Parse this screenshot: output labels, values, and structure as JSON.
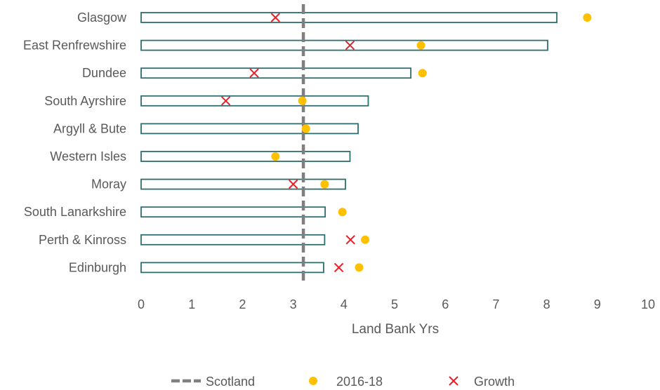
{
  "chart_data": {
    "type": "bar",
    "orientation": "horizontal",
    "title": "",
    "xlabel": "Land Bank Yrs",
    "ylabel": "",
    "xlim": [
      0,
      10
    ],
    "xticks": [
      "0",
      "1",
      "2",
      "3",
      "4",
      "5",
      "6",
      "7",
      "8",
      "9",
      "10"
    ],
    "grid": false,
    "legend_position": "bottom",
    "categories": [
      "Glasgow",
      "East Renfrewshire",
      "Dundee",
      "South Ayrshire",
      "Argyll & Bute",
      "Western Isles",
      "Moray",
      "South Lanarkshire",
      "Perth & Kinross",
      "Edinburgh"
    ],
    "bar_values": [
      8.2,
      8.02,
      5.32,
      4.48,
      4.28,
      4.12,
      4.03,
      3.63,
      3.62,
      3.6
    ],
    "series": [
      {
        "name": "Scotland",
        "kind": "reference-line",
        "value": 3.2,
        "color": "#7f7f7f"
      },
      {
        "name": "2016-18",
        "kind": "points",
        "color": "#ffc000",
        "values": [
          8.8,
          5.52,
          5.55,
          3.18,
          3.25,
          2.65,
          3.62,
          3.97,
          4.42,
          4.3
        ]
      },
      {
        "name": "Growth",
        "kind": "points",
        "color": "#e8202a",
        "values": [
          2.65,
          4.12,
          2.23,
          1.67,
          null,
          null,
          3.0,
          null,
          4.13,
          3.9
        ]
      }
    ],
    "legend": [
      {
        "name": "Scotland",
        "marker": "dashed-line"
      },
      {
        "name": "2016-18",
        "marker": "circle"
      },
      {
        "name": "Growth",
        "marker": "cross"
      }
    ],
    "colors": {
      "bar_stroke": "#2e6e6e",
      "bar_fill": "#ffffff",
      "text": "#595959"
    }
  }
}
